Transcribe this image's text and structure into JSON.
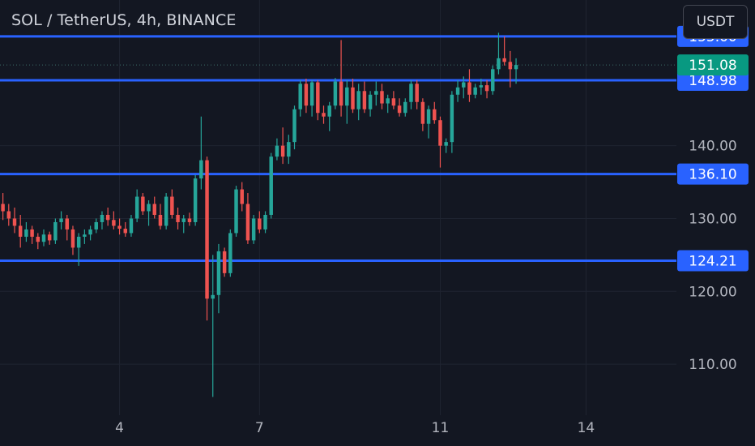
{
  "header": {
    "title": "SOL / TetherUS, 4h, BINANCE",
    "currency_button": "USDT"
  },
  "colors": {
    "background": "#131722",
    "grid": "#1f2431",
    "up": "#26a69a",
    "down": "#ef5350",
    "level_line": "#2962ff",
    "last_price_badge": "#089981"
  },
  "chart_data": {
    "type": "candlestick",
    "title": "SOL / TetherUS, 4h, BINANCE",
    "ylim": [
      103,
      160
    ],
    "y_ticks": [
      110,
      120,
      130,
      140
    ],
    "y_tick_labels": [
      "110.00",
      "120.00",
      "130.00",
      "140.00"
    ],
    "x_ticks": [
      {
        "label": "4",
        "index": 20
      },
      {
        "label": "7",
        "index": 44
      },
      {
        "label": "11",
        "index": 75
      },
      {
        "label": "14",
        "index": 100
      }
    ],
    "x_index_range": [
      -0.5,
      115.5
    ],
    "grid": true,
    "levels": [
      155.0,
      148.98,
      136.1,
      124.21
    ],
    "level_labels": [
      "155.00",
      "148.98",
      "136.10",
      "124.21"
    ],
    "last_price": 151.08,
    "last_price_label": "151.08",
    "candles": [
      [
        132.0,
        133.5,
        129.8,
        131.0
      ],
      [
        131.0,
        132.0,
        129.0,
        130.0
      ],
      [
        130.0,
        131.5,
        128.0,
        129.0
      ],
      [
        129.0,
        130.5,
        126.0,
        127.5
      ],
      [
        127.5,
        129.5,
        126.8,
        128.5
      ],
      [
        128.5,
        129.0,
        126.5,
        127.5
      ],
      [
        127.5,
        128.0,
        125.8,
        126.8
      ],
      [
        126.8,
        128.5,
        126.2,
        127.8
      ],
      [
        127.8,
        128.2,
        126.4,
        127.0
      ],
      [
        127.0,
        130.0,
        126.5,
        129.5
      ],
      [
        129.5,
        131.0,
        128.5,
        130.0
      ],
      [
        130.0,
        130.5,
        127.0,
        128.5
      ],
      [
        128.5,
        129.0,
        125.0,
        126.0
      ],
      [
        126.0,
        128.0,
        123.5,
        127.5
      ],
      [
        127.5,
        128.5,
        126.5,
        127.8
      ],
      [
        127.8,
        129.0,
        127.0,
        128.5
      ],
      [
        128.5,
        130.0,
        128.0,
        129.5
      ],
      [
        129.5,
        131.0,
        128.5,
        130.5
      ],
      [
        130.5,
        131.5,
        129.0,
        129.8
      ],
      [
        129.8,
        131.0,
        128.5,
        129.0
      ],
      [
        129.0,
        130.0,
        127.8,
        128.6
      ],
      [
        128.6,
        129.5,
        127.5,
        128.0
      ],
      [
        128.0,
        130.5,
        127.5,
        130.0
      ],
      [
        130.0,
        134.0,
        129.5,
        133.0
      ],
      [
        133.0,
        133.5,
        130.5,
        131.0
      ],
      [
        131.0,
        132.5,
        129.0,
        132.0
      ],
      [
        132.0,
        133.0,
        130.0,
        130.5
      ],
      [
        130.5,
        132.0,
        128.5,
        129.0
      ],
      [
        129.0,
        133.5,
        128.5,
        133.0
      ],
      [
        133.0,
        134.0,
        130.0,
        130.5
      ],
      [
        130.5,
        131.5,
        128.5,
        129.5
      ],
      [
        129.5,
        130.5,
        128.0,
        130.0
      ],
      [
        130.0,
        130.8,
        129.0,
        129.5
      ],
      [
        129.5,
        136.0,
        129.0,
        135.5
      ],
      [
        135.5,
        144.0,
        134.0,
        138.0
      ],
      [
        138.0,
        138.5,
        116.0,
        119.0
      ],
      [
        119.0,
        125.0,
        105.5,
        119.5
      ],
      [
        119.5,
        126.5,
        117.0,
        125.5
      ],
      [
        125.5,
        126.0,
        122.0,
        122.5
      ],
      [
        122.5,
        128.5,
        122.0,
        128.0
      ],
      [
        128.0,
        134.5,
        127.5,
        134.0
      ],
      [
        134.0,
        135.0,
        131.0,
        132.0
      ],
      [
        132.0,
        133.5,
        126.5,
        127.0
      ],
      [
        127.0,
        130.5,
        126.5,
        130.0
      ],
      [
        130.0,
        131.0,
        128.0,
        128.5
      ],
      [
        128.5,
        131.0,
        128.0,
        130.5
      ],
      [
        130.5,
        139.0,
        130.0,
        138.5
      ],
      [
        138.5,
        141.0,
        138.0,
        140.0
      ],
      [
        140.0,
        142.5,
        137.5,
        138.5
      ],
      [
        138.5,
        141.5,
        137.5,
        140.5
      ],
      [
        140.5,
        145.5,
        139.5,
        145.0
      ],
      [
        145.0,
        149.0,
        144.0,
        148.5
      ],
      [
        148.5,
        149.2,
        144.5,
        145.5
      ],
      [
        145.5,
        149.0,
        144.0,
        148.7
      ],
      [
        148.7,
        149.0,
        143.5,
        144.5
      ],
      [
        144.5,
        145.5,
        143.0,
        144.0
      ],
      [
        144.0,
        146.0,
        142.0,
        145.5
      ],
      [
        145.5,
        149.3,
        145.0,
        148.8
      ],
      [
        148.8,
        154.5,
        144.0,
        145.5
      ],
      [
        145.5,
        149.0,
        143.0,
        148.0
      ],
      [
        148.0,
        149.2,
        144.5,
        145.0
      ],
      [
        145.0,
        148.5,
        143.5,
        147.5
      ],
      [
        147.5,
        148.8,
        144.5,
        145.0
      ],
      [
        145.0,
        147.5,
        144.0,
        147.0
      ],
      [
        147.0,
        148.8,
        145.5,
        147.5
      ],
      [
        147.5,
        148.5,
        145.0,
        145.8
      ],
      [
        145.8,
        147.0,
        144.5,
        146.5
      ],
      [
        146.5,
        147.5,
        145.0,
        145.5
      ],
      [
        145.5,
        146.5,
        144.0,
        144.5
      ],
      [
        144.5,
        146.5,
        144.0,
        146.0
      ],
      [
        146.0,
        149.0,
        145.0,
        148.5
      ],
      [
        148.5,
        149.0,
        145.0,
        146.0
      ],
      [
        146.0,
        146.5,
        142.0,
        143.0
      ],
      [
        143.0,
        145.5,
        141.0,
        145.0
      ],
      [
        145.0,
        146.0,
        143.0,
        143.5
      ],
      [
        143.5,
        144.0,
        137.0,
        140.0
      ],
      [
        140.0,
        141.0,
        139.0,
        140.5
      ],
      [
        140.5,
        147.5,
        139.0,
        147.0
      ],
      [
        147.0,
        149.0,
        146.0,
        148.0
      ],
      [
        148.0,
        149.5,
        146.5,
        148.7
      ],
      [
        148.7,
        150.5,
        146.0,
        147.0
      ],
      [
        147.0,
        148.5,
        146.5,
        148.0
      ],
      [
        148.0,
        149.2,
        147.0,
        148.3
      ],
      [
        148.3,
        149.0,
        146.5,
        147.5
      ],
      [
        147.5,
        151.0,
        147.0,
        150.5
      ],
      [
        150.5,
        155.5,
        149.8,
        152.0
      ],
      [
        152.0,
        155.0,
        151.0,
        151.5
      ],
      [
        151.5,
        153.0,
        148.0,
        150.5
      ],
      [
        150.5,
        152.0,
        148.5,
        151.08
      ]
    ]
  }
}
